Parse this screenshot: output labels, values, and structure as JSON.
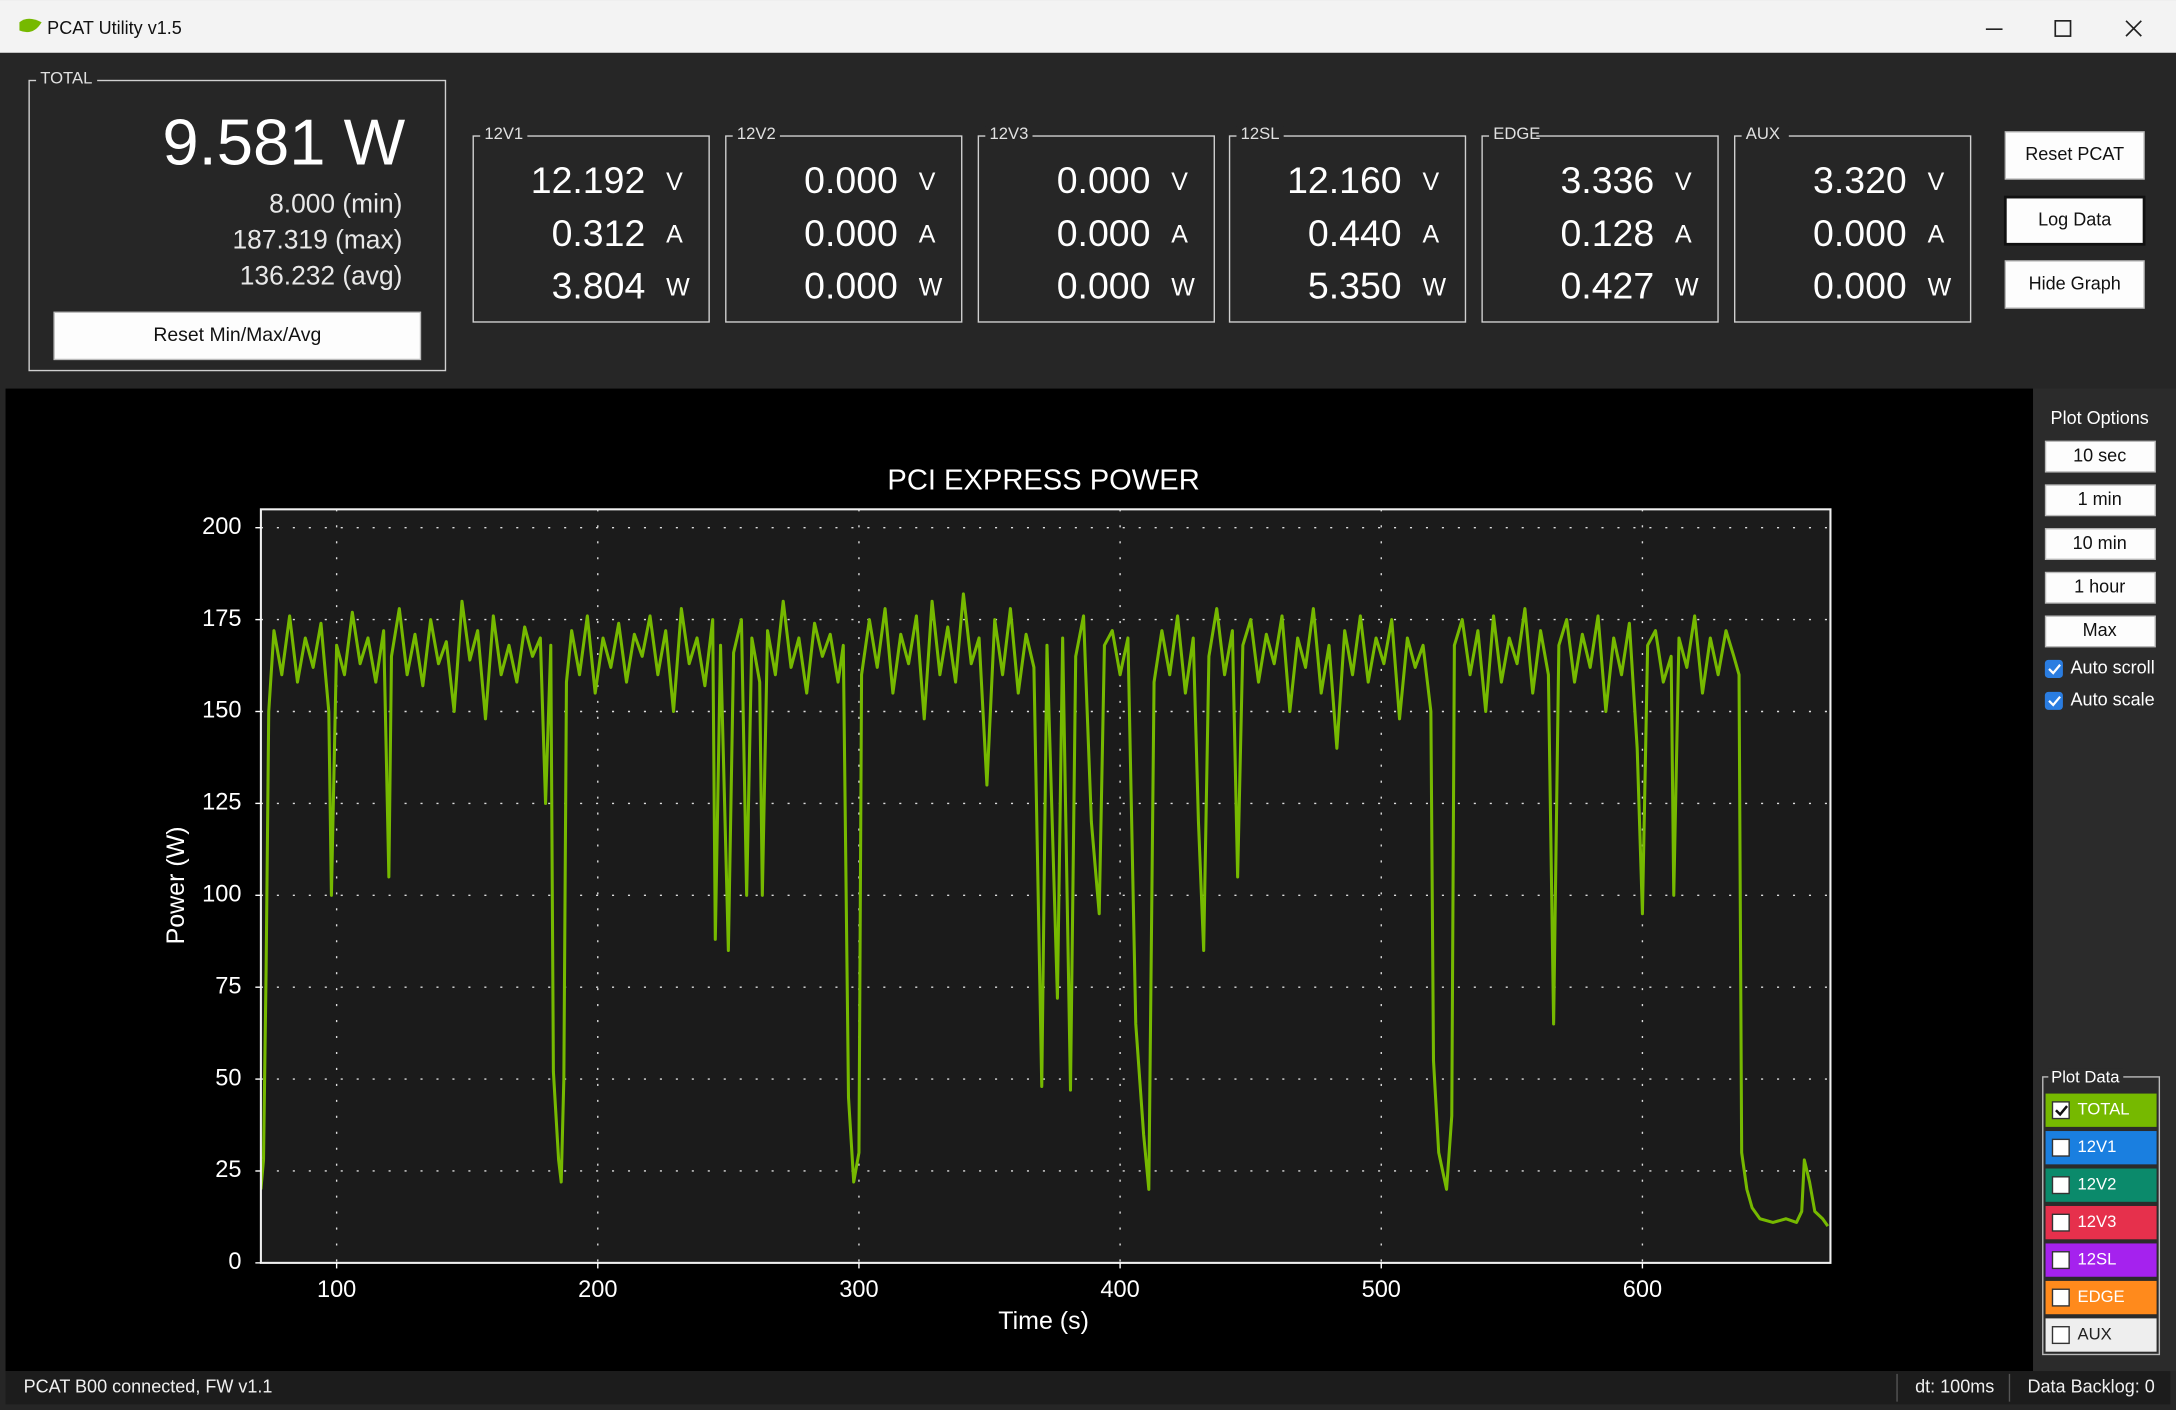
{
  "window": {
    "title": "PCAT Utility v1.5"
  },
  "total": {
    "label": "TOTAL",
    "power": "9.581 W",
    "min": "8.000 (min)",
    "max": "187.319 (max)",
    "avg": "136.232 (avg)",
    "reset_button": "Reset Min/Max/Avg"
  },
  "units": [
    "V",
    "A",
    "W"
  ],
  "channels": [
    {
      "name": "12V1",
      "voltage": "12.192",
      "current": "0.312",
      "power": "3.804"
    },
    {
      "name": "12V2",
      "voltage": "0.000",
      "current": "0.000",
      "power": "0.000"
    },
    {
      "name": "12V3",
      "voltage": "0.000",
      "current": "0.000",
      "power": "0.000"
    },
    {
      "name": "12SL",
      "voltage": "12.160",
      "current": "0.440",
      "power": "5.350"
    },
    {
      "name": "EDGE",
      "voltage": "3.336",
      "current": "0.128",
      "power": "0.427"
    },
    {
      "name": "AUX",
      "voltage": "3.320",
      "current": "0.000",
      "power": "0.000"
    }
  ],
  "buttons": [
    "Reset PCAT",
    "Log Data",
    "Hide Graph"
  ],
  "plot_options": {
    "title": "Plot Options",
    "ranges": [
      "10 sec",
      "1 min",
      "10 min",
      "1 hour",
      "Max"
    ],
    "checkboxes": [
      {
        "label": "Auto scroll",
        "checked": true
      },
      {
        "label": "Auto scale",
        "checked": true
      }
    ]
  },
  "plot_data": {
    "title": "Plot Data",
    "items": [
      {
        "label": "TOTAL",
        "color": "#76b900",
        "checked": true
      },
      {
        "label": "12V1",
        "color": "#1a7fe0",
        "checked": false
      },
      {
        "label": "12V2",
        "color": "#0b8a6b",
        "checked": false
      },
      {
        "label": "12V3",
        "color": "#e6304c",
        "checked": false
      },
      {
        "label": "12SL",
        "color": "#a522ee",
        "checked": false
      },
      {
        "label": "EDGE",
        "color": "#ff8a1c",
        "checked": false
      },
      {
        "label": "AUX",
        "color": "#eeeeee",
        "checked": false
      }
    ]
  },
  "chart_data": {
    "type": "line",
    "title": "PCI EXPRESS POWER",
    "x_label": "Time (s)",
    "y_label": "Power (W)",
    "xlim": [
      71,
      672
    ],
    "ylim": [
      0,
      205
    ],
    "xticks": [
      100,
      200,
      300,
      400,
      500,
      600
    ],
    "yticks": [
      0,
      25,
      50,
      75,
      100,
      125,
      150,
      175,
      200
    ],
    "grid": true,
    "series": [
      {
        "color": "#76b900",
        "x": [
          71,
          72,
          73,
          74,
          76,
          79,
          82,
          85,
          88,
          91,
          94,
          97,
          98,
          100,
          103,
          106,
          109,
          112,
          115,
          118,
          120,
          121,
          124,
          127,
          130,
          133,
          136,
          139,
          142,
          145,
          148,
          151,
          154,
          157,
          160,
          163,
          166,
          169,
          172,
          175,
          178,
          180,
          182,
          183,
          185,
          186,
          187,
          188,
          190,
          193,
          196,
          199,
          202,
          205,
          208,
          211,
          214,
          217,
          220,
          223,
          226,
          229,
          232,
          235,
          238,
          241,
          244,
          245,
          247,
          250,
          252,
          255,
          257,
          259,
          262,
          263,
          265,
          268,
          271,
          274,
          277,
          280,
          283,
          286,
          289,
          292,
          294,
          296,
          298,
          300,
          301,
          304,
          307,
          310,
          313,
          316,
          319,
          322,
          325,
          328,
          331,
          334,
          337,
          340,
          343,
          346,
          349,
          352,
          355,
          358,
          361,
          364,
          367,
          370,
          372,
          376,
          378,
          381,
          383,
          386,
          389,
          392,
          394,
          397,
          400,
          403,
          406,
          409,
          411,
          413,
          416,
          419,
          422,
          425,
          428,
          430,
          432,
          434,
          437,
          440,
          443,
          445,
          447,
          450,
          453,
          456,
          459,
          462,
          465,
          468,
          471,
          474,
          477,
          480,
          483,
          486,
          489,
          492,
          495,
          498,
          501,
          504,
          507,
          510,
          513,
          516,
          519,
          520,
          522,
          525,
          527,
          528,
          531,
          534,
          537,
          540,
          543,
          546,
          549,
          552,
          555,
          558,
          561,
          564,
          566,
          568,
          571,
          574,
          577,
          580,
          583,
          586,
          589,
          592,
          595,
          598,
          600,
          602,
          605,
          608,
          611,
          612,
          614,
          617,
          620,
          623,
          626,
          629,
          632,
          635,
          637,
          638,
          640,
          642,
          645,
          650,
          655,
          659,
          661,
          662,
          664,
          666,
          669,
          671
        ],
        "values": [
          20,
          28,
          80,
          150,
          172,
          160,
          176,
          158,
          170,
          162,
          174,
          150,
          100,
          168,
          160,
          177,
          163,
          170,
          158,
          172,
          105,
          165,
          178,
          160,
          171,
          157,
          175,
          163,
          169,
          150,
          180,
          164,
          172,
          148,
          176,
          160,
          168,
          158,
          173,
          165,
          170,
          125,
          168,
          52,
          28,
          22,
          50,
          158,
          172,
          160,
          176,
          155,
          170,
          162,
          174,
          158,
          171,
          165,
          176,
          160,
          172,
          150,
          178,
          163,
          170,
          157,
          175,
          88,
          168,
          85,
          166,
          175,
          100,
          170,
          158,
          100,
          172,
          160,
          180,
          162,
          170,
          155,
          174,
          165,
          171,
          158,
          168,
          45,
          22,
          30,
          160,
          175,
          162,
          178,
          155,
          171,
          163,
          176,
          148,
          180,
          160,
          173,
          158,
          182,
          163,
          170,
          130,
          175,
          160,
          178,
          155,
          171,
          162,
          48,
          168,
          72,
          170,
          47,
          165,
          176,
          120,
          95,
          168,
          172,
          160,
          170,
          65,
          35,
          20,
          158,
          172,
          160,
          176,
          155,
          170,
          120,
          85,
          165,
          178,
          160,
          172,
          105,
          168,
          175,
          158,
          171,
          163,
          176,
          150,
          170,
          162,
          178,
          155,
          168,
          140,
          172,
          160,
          176,
          158,
          170,
          163,
          175,
          148,
          170,
          162,
          168,
          150,
          55,
          30,
          20,
          40,
          168,
          175,
          160,
          172,
          150,
          176,
          158,
          170,
          163,
          178,
          155,
          172,
          160,
          65,
          168,
          175,
          158,
          171,
          162,
          176,
          150,
          170,
          160,
          174,
          140,
          95,
          168,
          172,
          158,
          165,
          100,
          170,
          162,
          176,
          155,
          170,
          160,
          172,
          165,
          160,
          30,
          20,
          15,
          12,
          11,
          12,
          11,
          14,
          28,
          22,
          14,
          12,
          10
        ]
      }
    ]
  },
  "status": {
    "connection": "PCAT B00 connected, FW v1.1",
    "dt": "dt: 100ms",
    "backlog": "Data Backlog: 0"
  }
}
